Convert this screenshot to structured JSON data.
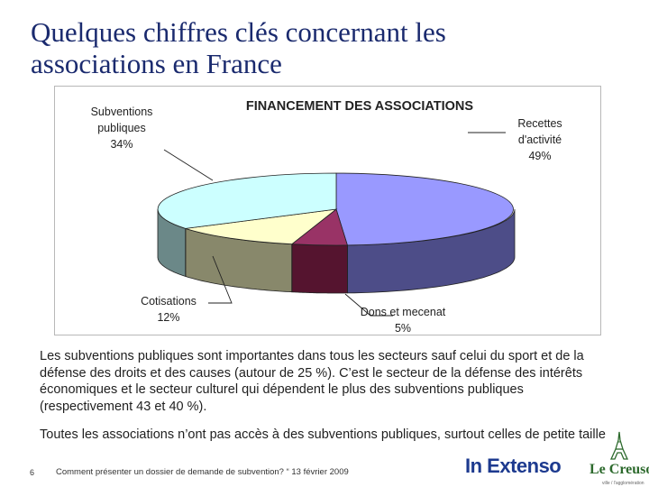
{
  "slide": {
    "title_line1": "Quelques chiffres clés concernant les",
    "title_line2": "associations en France"
  },
  "chart_data": {
    "type": "pie",
    "title": "FINANCEMENT DES ASSOCIATIONS",
    "slices": [
      {
        "name": "Recettes d'activité",
        "value": 49,
        "label_lines": [
          "Recettes",
          "d'activité",
          "49%"
        ],
        "top_color": "#9999ff",
        "side_color": "#4d4d88"
      },
      {
        "name": "Dons et mecenat",
        "value": 5,
        "label_lines": [
          "Dons et mecenat",
          "5%"
        ],
        "top_color": "#993366",
        "side_color": "#55142f"
      },
      {
        "name": "Cotisations",
        "value": 12,
        "label_lines": [
          "Cotisations",
          "12%"
        ],
        "top_color": "#ffffcc",
        "side_color": "#88886b"
      },
      {
        "name": "Subventions publiques",
        "value": 34,
        "label_lines": [
          "Subventions",
          "publiques",
          "34%"
        ],
        "top_color": "#ccffff",
        "side_color": "#6b8888"
      }
    ],
    "style": "3d-pie"
  },
  "body": {
    "paragraph1": "Les subventions publiques sont importantes dans tous les secteurs sauf celui du sport et de la défense des droits et des causes (autour de 25 %). C’est le secteur de la défense des intérêts économiques et le secteur culturel qui dépendent le plus des subventions publiques (respectivement 43 et 40 %).",
    "paragraph2": "Toutes les associations n’ont pas accès à des subventions publiques, surtout celles de petite taille"
  },
  "footer": {
    "page_number": "6",
    "text": "Comment présenter un dossier de demande de subvention? “ 13 février 2009",
    "logo_inextenso": "In Extenso",
    "logo_lecreusot": "Le Creusot",
    "logo_lecreusot_sub": "ville / l'agglomération"
  }
}
